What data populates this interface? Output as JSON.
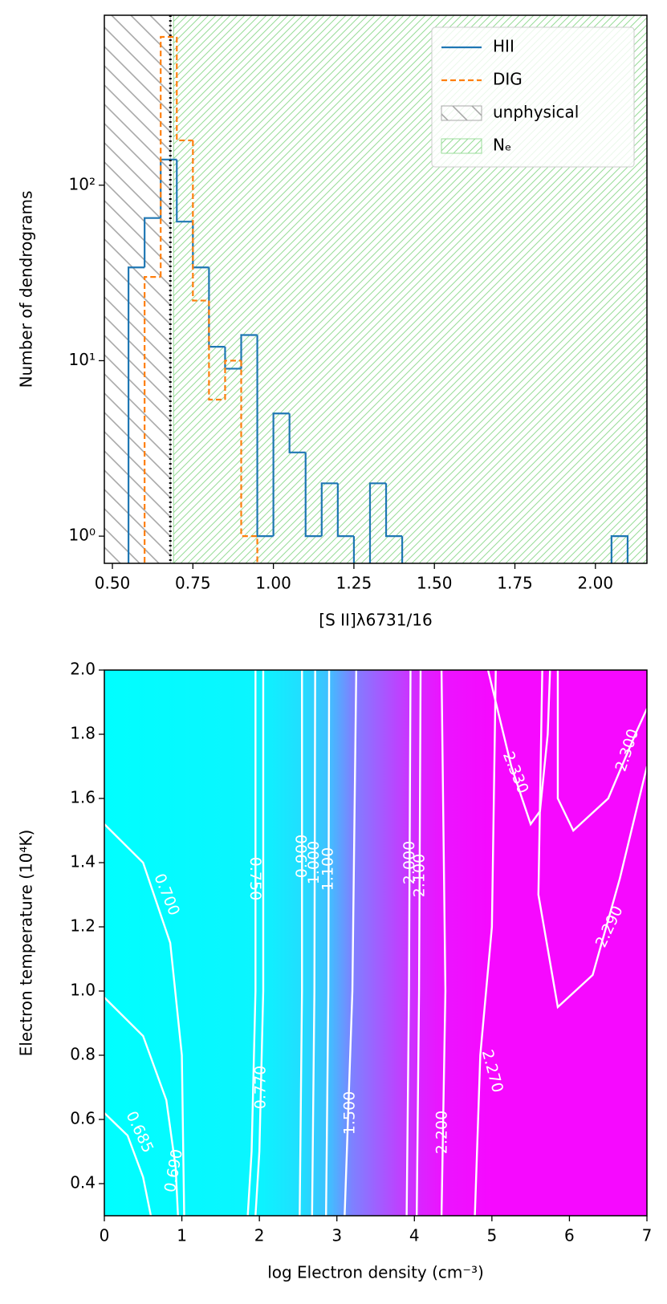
{
  "chart_data": [
    {
      "type": "histogram",
      "xlabel": "[S II]λ6731/16",
      "ylabel": "Number of dendrograms",
      "xlim": [
        0.475,
        2.16
      ],
      "ylim": [
        0.7,
        930
      ],
      "yscale": "log",
      "xticks": [
        {
          "value": 0.5,
          "label": "0.50"
        },
        {
          "value": 0.75,
          "label": "0.75"
        },
        {
          "value": 1,
          "label": "1.00"
        },
        {
          "value": 1.25,
          "label": "1.25"
        },
        {
          "value": 1.5,
          "label": "1.50"
        },
        {
          "value": 1.75,
          "label": "1.75"
        },
        {
          "value": 2,
          "label": "2.00"
        }
      ],
      "yticks": [
        {
          "value": 1,
          "label": "10⁰"
        },
        {
          "value": 10,
          "label": "10¹"
        },
        {
          "value": 100,
          "label": "10²"
        }
      ],
      "series": [
        {
          "name": "HII",
          "color": "#1f77b4",
          "linestyle": "solid",
          "bins": [
            0.55,
            0.6,
            0.65,
            0.7,
            0.75,
            0.8,
            0.85,
            0.9,
            0.95,
            1,
            1.05,
            1.1,
            1.15,
            1.2,
            1.25,
            1.3,
            1.35,
            1.4,
            1.45,
            1.5,
            1.55,
            1.6,
            1.65,
            1.7,
            1.75,
            1.8,
            1.85,
            1.9,
            1.95,
            2,
            2.05,
            2.1
          ],
          "values": [
            34,
            65,
            140,
            62,
            34,
            12,
            9,
            14,
            1,
            5,
            3,
            1,
            2,
            1,
            0,
            2,
            1,
            0,
            0,
            0,
            0,
            0,
            0,
            0,
            0,
            0,
            0,
            0,
            0,
            0,
            1
          ]
        },
        {
          "name": "DIG",
          "color": "#ff7f0e",
          "linestyle": "dashed",
          "bins": [
            0.6,
            0.65,
            0.7,
            0.75,
            0.8,
            0.85,
            0.9,
            0.95
          ],
          "values": [
            30,
            700,
            180,
            22,
            6,
            10,
            1
          ]
        }
      ],
      "regions": [
        {
          "name": "unphysical",
          "color": "#a8a8a8",
          "hatch": "\\",
          "x": [
            0.4,
            0.68
          ]
        },
        {
          "name": "Nₑ",
          "color": "#98dc98",
          "hatch": "/",
          "x": [
            0.69,
            2.2
          ]
        }
      ],
      "vline": {
        "x": 0.68,
        "color": "#000000"
      },
      "legend": "upper right"
    },
    {
      "type": "contour",
      "xlabel": "log Electron density (cm⁻³)",
      "ylabel": "Electron temperature (10⁴K)",
      "xlim": [
        0,
        7
      ],
      "ylim": [
        0.3,
        2.0
      ],
      "xticks": [
        0,
        1,
        2,
        3,
        4,
        5,
        6,
        7
      ],
      "yticks": [
        0.4,
        0.6,
        0.8,
        {
          "value": 1,
          "label": "1.0"
        },
        1.2,
        1.4,
        1.6,
        1.8,
        {
          "value": 2,
          "label": "2.0"
        }
      ],
      "colormap": "cool",
      "line_color": "#ffffff",
      "levels": [
        0.685,
        0.69,
        0.7,
        0.75,
        0.77,
        0.9,
        1,
        1.1,
        1.5,
        2,
        2.1,
        2.2,
        2.27,
        2.29,
        2.3,
        2.33
      ],
      "level_labels": [
        "0.685",
        "0.690",
        "0.700",
        "0.750",
        "0.770",
        "0.900",
        "1.000",
        "1.100",
        "1.500",
        "2.000",
        "2.100",
        "2.200",
        "2.270",
        "2.290",
        "2.300",
        "2.330"
      ]
    }
  ]
}
